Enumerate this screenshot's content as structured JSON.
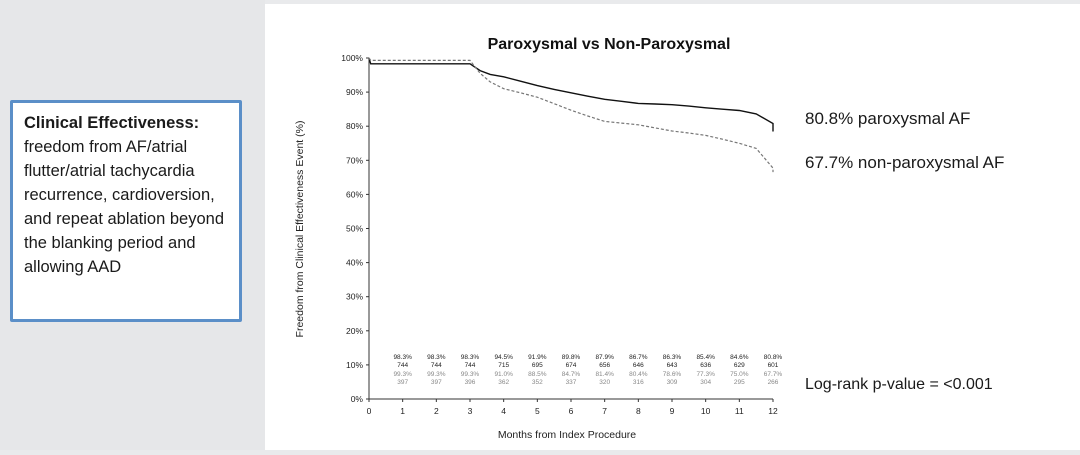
{
  "info_box": {
    "title": "Clinical Effectiveness:",
    "body": " freedom from AF/atrial flutter/atrial tachycardia recurrence, cardioversion, and repeat ablation beyond the blanking period and allowing AAD"
  },
  "chart_data": {
    "type": "line",
    "title": "Paroxysmal vs Non-Paroxysmal",
    "xlabel": "Months from Index Procedure",
    "ylabel": "Freedom from Clinical Effectiveness Event (%)",
    "xlim": [
      0,
      12
    ],
    "ylim": [
      0,
      100
    ],
    "x_ticks": [
      "0",
      "1",
      "2",
      "3",
      "4",
      "5",
      "6",
      "7",
      "8",
      "9",
      "10",
      "11",
      "12"
    ],
    "y_ticks": [
      "0%",
      "10%",
      "20%",
      "30%",
      "40%",
      "50%",
      "60%",
      "70%",
      "80%",
      "90%",
      "100%"
    ],
    "series": [
      {
        "style": "solid",
        "color": "#111111",
        "x": [
          0,
          0.05,
          3,
          3.3,
          3.6,
          4,
          4.5,
          5,
          5.5,
          6,
          6.5,
          7,
          7.5,
          8,
          8.5,
          9,
          9.5,
          10,
          10.5,
          11,
          11.5,
          12
        ],
        "y": [
          100,
          98.3,
          98.3,
          96.3,
          95.2,
          94.5,
          93.2,
          91.9,
          90.8,
          89.8,
          88.8,
          87.9,
          87.3,
          86.7,
          86.5,
          86.3,
          85.9,
          85.4,
          85.0,
          84.6,
          83.6,
          80.8
        ]
      },
      {
        "style": "dashed",
        "color": "#777777",
        "x": [
          0,
          0.05,
          3,
          3.3,
          3.6,
          4,
          4.5,
          5,
          5.5,
          6,
          6.5,
          7,
          7.5,
          8,
          8.5,
          9,
          9.5,
          10,
          10.5,
          11,
          11.5,
          12
        ],
        "y": [
          100,
          99.3,
          99.3,
          95.5,
          93.0,
          91.0,
          89.8,
          88.5,
          86.6,
          84.7,
          83.0,
          81.4,
          80.9,
          80.4,
          79.5,
          78.6,
          78.0,
          77.3,
          76.2,
          75.0,
          73.5,
          67.7
        ]
      }
    ],
    "end_labels": [
      "80.8% paroxysmal AF",
      "67.7% non-paroxysmal AF"
    ],
    "annotation": "Log-rank p-value = <0.001",
    "risk_table": {
      "months": [
        1,
        2,
        3,
        4,
        5,
        6,
        7,
        8,
        9,
        10,
        11,
        12
      ],
      "rows": [
        [
          "98.3%",
          "98.3%",
          "98.3%",
          "94.5%",
          "91.9%",
          "89.8%",
          "87.9%",
          "86.7%",
          "86.3%",
          "85.4%",
          "84.6%",
          "80.8%"
        ],
        [
          "744",
          "744",
          "744",
          "715",
          "695",
          "674",
          "656",
          "646",
          "643",
          "636",
          "629",
          "601"
        ],
        [
          "99.3%",
          "99.3%",
          "99.3%",
          "91.0%",
          "88.5%",
          "84.7%",
          "81.4%",
          "80.4%",
          "78.6%",
          "77.3%",
          "75.0%",
          "67.7%"
        ],
        [
          "397",
          "397",
          "396",
          "362",
          "352",
          "337",
          "320",
          "316",
          "309",
          "304",
          "295",
          "266"
        ]
      ]
    }
  }
}
